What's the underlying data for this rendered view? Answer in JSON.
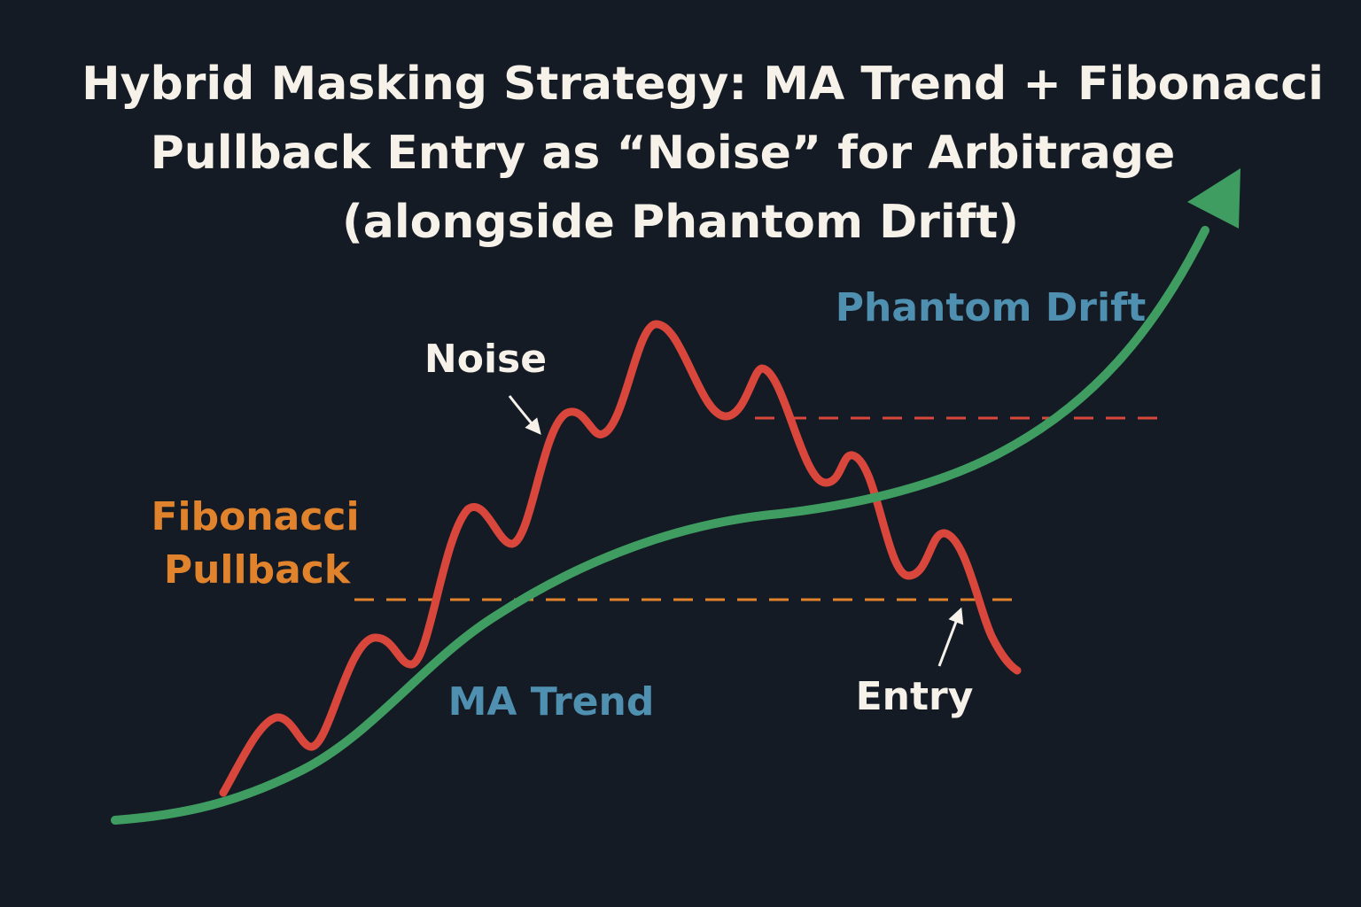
{
  "title": {
    "line1": "Hybrid Masking Strategy: MA Trend + Fibonacci",
    "line2": "Pullback Entry as “Noise” for Arbitrage",
    "line3": "(alongside Phantom Drift)"
  },
  "labels": {
    "noise": "Noise",
    "phantom_drift": "Phantom Drift",
    "fibonacci_line1": "Fibonacci",
    "fibonacci_line2": "Pullback",
    "ma_trend": "MA Trend",
    "entry": "Entry"
  },
  "colors": {
    "background": "#141b24",
    "title": "#f6f2ea",
    "price_line": "#d9463b",
    "trend_line": "#3f9d62",
    "fib_level": "#e0832c",
    "upper_level": "#d9463b",
    "phantom_label": "#4f8fb0",
    "ma_label": "#4f8fb0",
    "fib_label": "#e0832c",
    "annotation": "#f6f2ea"
  }
}
